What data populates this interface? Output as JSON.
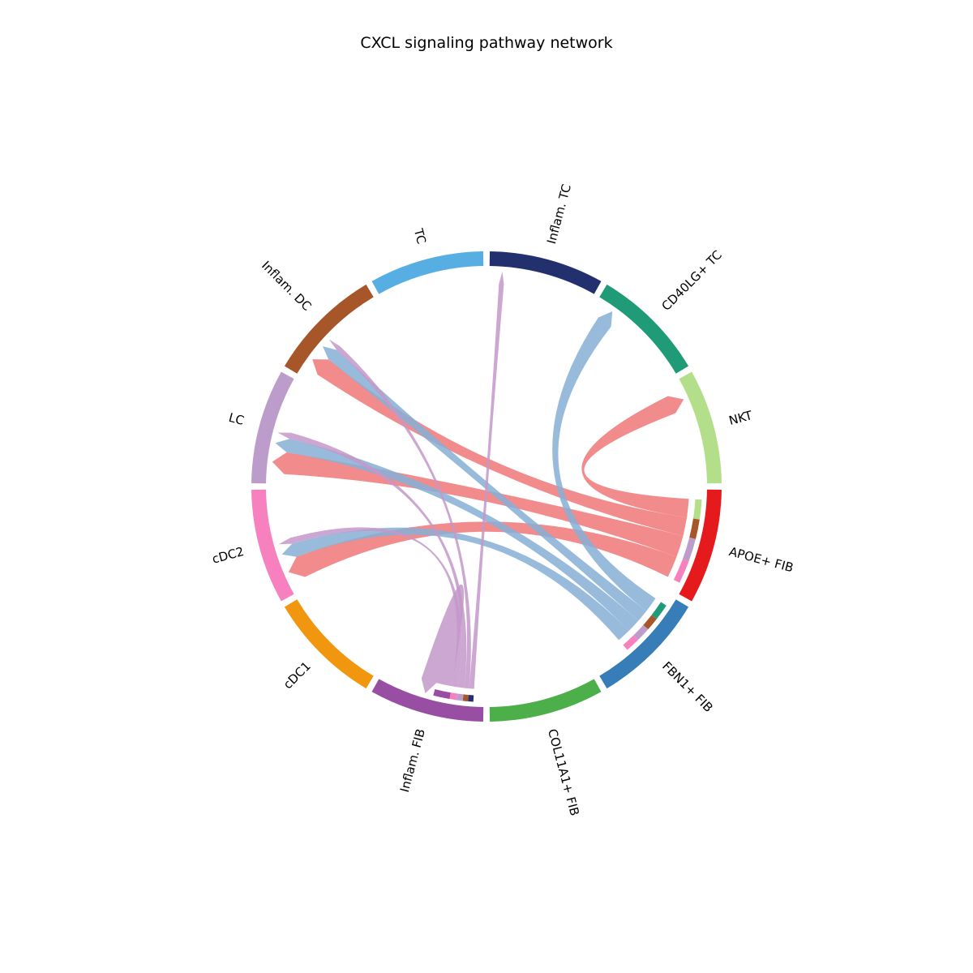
{
  "chart_data": {
    "type": "chord",
    "title": "CXCL signaling pathway network",
    "segments": [
      {
        "name": "Inflam. TC",
        "color": "#23306e"
      },
      {
        "name": "CD40LG+ TC",
        "color": "#1f9b78"
      },
      {
        "name": "NKT",
        "color": "#b3df8a"
      },
      {
        "name": "APOE+ FIB",
        "color": "#e41a1c"
      },
      {
        "name": "FBN1+ FIB",
        "color": "#377eb8"
      },
      {
        "name": "COL11A1+ FIB",
        "color": "#4daf4a"
      },
      {
        "name": "Inflam. FIB",
        "color": "#984ea3"
      },
      {
        "name": "cDC1",
        "color": "#f0960f"
      },
      {
        "name": "cDC2",
        "color": "#f781bf"
      },
      {
        "name": "LC",
        "color": "#bc9ccb"
      },
      {
        "name": "Inflam. DC",
        "color": "#a65628"
      },
      {
        "name": "TC",
        "color": "#56aee2"
      }
    ],
    "flows": [
      {
        "source": "APOE+ FIB",
        "target": "NKT",
        "value": 3
      },
      {
        "source": "APOE+ FIB",
        "target": "Inflam. DC",
        "value": 3
      },
      {
        "source": "APOE+ FIB",
        "target": "LC",
        "value": 3.5
      },
      {
        "source": "APOE+ FIB",
        "target": "cDC2",
        "value": 3.5
      },
      {
        "source": "FBN1+ FIB",
        "target": "CD40LG+ TC",
        "value": 2.5
      },
      {
        "source": "FBN1+ FIB",
        "target": "Inflam. DC",
        "value": 2
      },
      {
        "source": "FBN1+ FIB",
        "target": "LC",
        "value": 2.2
      },
      {
        "source": "FBN1+ FIB",
        "target": "cDC2",
        "value": 2.2
      },
      {
        "source": "Inflam. FIB",
        "target": "Inflam. TC",
        "value": 0.8
      },
      {
        "source": "Inflam. FIB",
        "target": "Inflam. DC",
        "value": 0.8
      },
      {
        "source": "Inflam. FIB",
        "target": "LC",
        "value": 1
      },
      {
        "source": "Inflam. FIB",
        "target": "cDC2",
        "value": 1
      },
      {
        "source": "Inflam. FIB",
        "target": "Inflam. FIB",
        "value": 2.5
      }
    ]
  }
}
